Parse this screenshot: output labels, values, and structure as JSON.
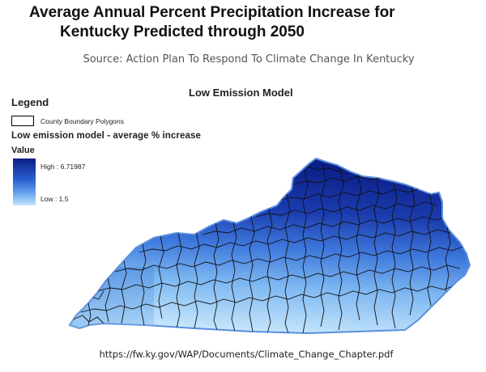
{
  "title": {
    "line1": "Average Annual Percent Precipitation Increase for",
    "line2": "Kentucky Predicted through 2050"
  },
  "source": "Source:  Action Plan To Respond To Climate Change In Kentucky",
  "map": {
    "model_title": "Low Emission Model",
    "colors": {
      "high": "#0b1e86",
      "mid": "#2a5fd0",
      "low": "#c6e6fc",
      "boundary": "#111111"
    }
  },
  "legend": {
    "title": "Legend",
    "boundary_label": "County Boundary Polygons",
    "layer_label": "Low emission model  -  average  % increase",
    "value_label": "Value",
    "high_label": "High : 6.71987",
    "low_label": "Low : 1.5",
    "high_value": 6.71987,
    "low_value": 1.5
  },
  "footer": {
    "url": "https://fw.ky.gov/WAP/Documents/Climate_Change_Chapter.pdf"
  }
}
